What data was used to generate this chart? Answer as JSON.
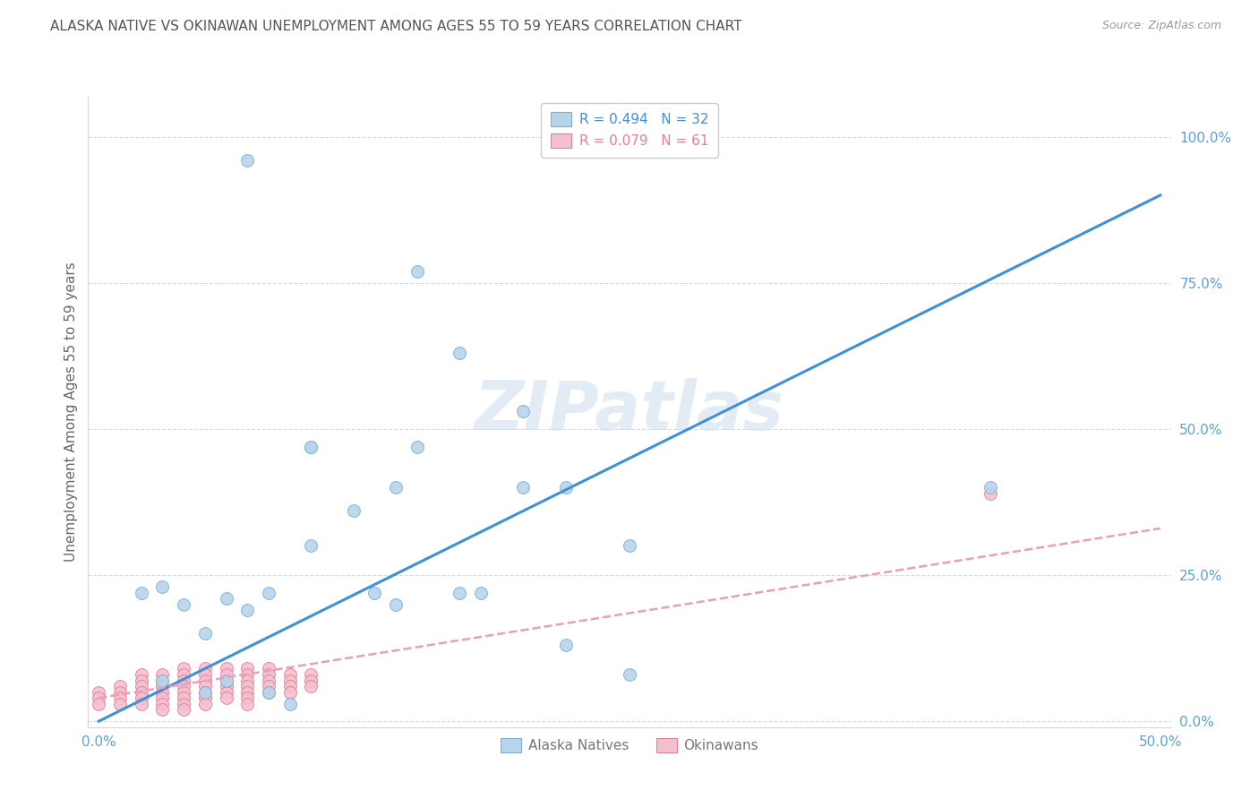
{
  "title": "ALASKA NATIVE VS OKINAWAN UNEMPLOYMENT AMONG AGES 55 TO 59 YEARS CORRELATION CHART",
  "source": "Source: ZipAtlas.com",
  "ylabel": "Unemployment Among Ages 55 to 59 years",
  "background_color": "#ffffff",
  "watermark": "ZIPatlas",
  "xlim": [
    -0.005,
    0.505
  ],
  "ylim": [
    -0.01,
    1.07
  ],
  "xticks": [
    0.0,
    0.1,
    0.2,
    0.3,
    0.4,
    0.5
  ],
  "yticks": [
    0.0,
    0.25,
    0.5,
    0.75,
    1.0
  ],
  "xticklabels": [
    "0.0%",
    "",
    "",
    "",
    "",
    "50.0%"
  ],
  "yticklabels": [
    "0.0%",
    "25.0%",
    "50.0%",
    "75.0%",
    "100.0%"
  ],
  "alaska_R": 0.494,
  "alaska_N": 32,
  "okinawan_R": 0.079,
  "okinawan_N": 61,
  "alaska_color": "#b8d4ea",
  "alaska_edge_color": "#7ab0d8",
  "okinawan_color": "#f5c0ce",
  "okinawan_edge_color": "#e08098",
  "alaska_line_color": "#4090d8",
  "okinawan_line_color": "#e8a0b8",
  "grid_color": "#d0dce8",
  "tick_color": "#60a0d0",
  "alaska_x": [
    0.07,
    0.08,
    0.1,
    0.1,
    0.14,
    0.15,
    0.17,
    0.2,
    0.22,
    0.25,
    0.02,
    0.03,
    0.04,
    0.05,
    0.05,
    0.06,
    0.06,
    0.07,
    0.08,
    0.09,
    0.1,
    0.12,
    0.13,
    0.14,
    0.15,
    0.17,
    0.18,
    0.2,
    0.22,
    0.25,
    0.42,
    0.03
  ],
  "alaska_y": [
    0.96,
    0.22,
    0.47,
    0.47,
    0.4,
    0.77,
    0.63,
    0.53,
    0.4,
    0.3,
    0.22,
    0.23,
    0.2,
    0.05,
    0.15,
    0.21,
    0.07,
    0.19,
    0.05,
    0.03,
    0.3,
    0.36,
    0.22,
    0.2,
    0.47,
    0.22,
    0.22,
    0.4,
    0.13,
    0.08,
    0.4,
    0.07
  ],
  "okinawan_x": [
    0.0,
    0.0,
    0.0,
    0.01,
    0.01,
    0.01,
    0.01,
    0.02,
    0.02,
    0.02,
    0.02,
    0.02,
    0.02,
    0.03,
    0.03,
    0.03,
    0.03,
    0.03,
    0.03,
    0.03,
    0.04,
    0.04,
    0.04,
    0.04,
    0.04,
    0.04,
    0.04,
    0.04,
    0.05,
    0.05,
    0.05,
    0.05,
    0.05,
    0.05,
    0.05,
    0.06,
    0.06,
    0.06,
    0.06,
    0.06,
    0.06,
    0.07,
    0.07,
    0.07,
    0.07,
    0.07,
    0.07,
    0.07,
    0.08,
    0.08,
    0.08,
    0.08,
    0.08,
    0.09,
    0.09,
    0.09,
    0.09,
    0.1,
    0.1,
    0.1,
    0.42
  ],
  "okinawan_y": [
    0.05,
    0.04,
    0.03,
    0.06,
    0.05,
    0.04,
    0.03,
    0.08,
    0.07,
    0.06,
    0.05,
    0.04,
    0.03,
    0.08,
    0.07,
    0.06,
    0.05,
    0.04,
    0.03,
    0.02,
    0.09,
    0.08,
    0.07,
    0.06,
    0.05,
    0.04,
    0.03,
    0.02,
    0.09,
    0.08,
    0.07,
    0.06,
    0.05,
    0.04,
    0.03,
    0.09,
    0.08,
    0.07,
    0.06,
    0.05,
    0.04,
    0.09,
    0.08,
    0.07,
    0.06,
    0.05,
    0.04,
    0.03,
    0.09,
    0.08,
    0.07,
    0.06,
    0.05,
    0.08,
    0.07,
    0.06,
    0.05,
    0.08,
    0.07,
    0.06,
    0.39
  ],
  "legend_alaska_label": "Alaska Natives",
  "legend_okinawan_label": "Okinawans",
  "title_fontsize": 11,
  "axis_label_fontsize": 11,
  "tick_fontsize": 11,
  "legend_fontsize": 11,
  "marker_size": 100,
  "alaska_line_x0": 0.0,
  "alaska_line_y0": 0.0,
  "alaska_line_x1": 0.5,
  "alaska_line_y1": 0.9,
  "okinawan_line_x0": 0.0,
  "okinawan_line_y0": 0.04,
  "okinawan_line_x1": 0.5,
  "okinawan_line_y1": 0.33
}
